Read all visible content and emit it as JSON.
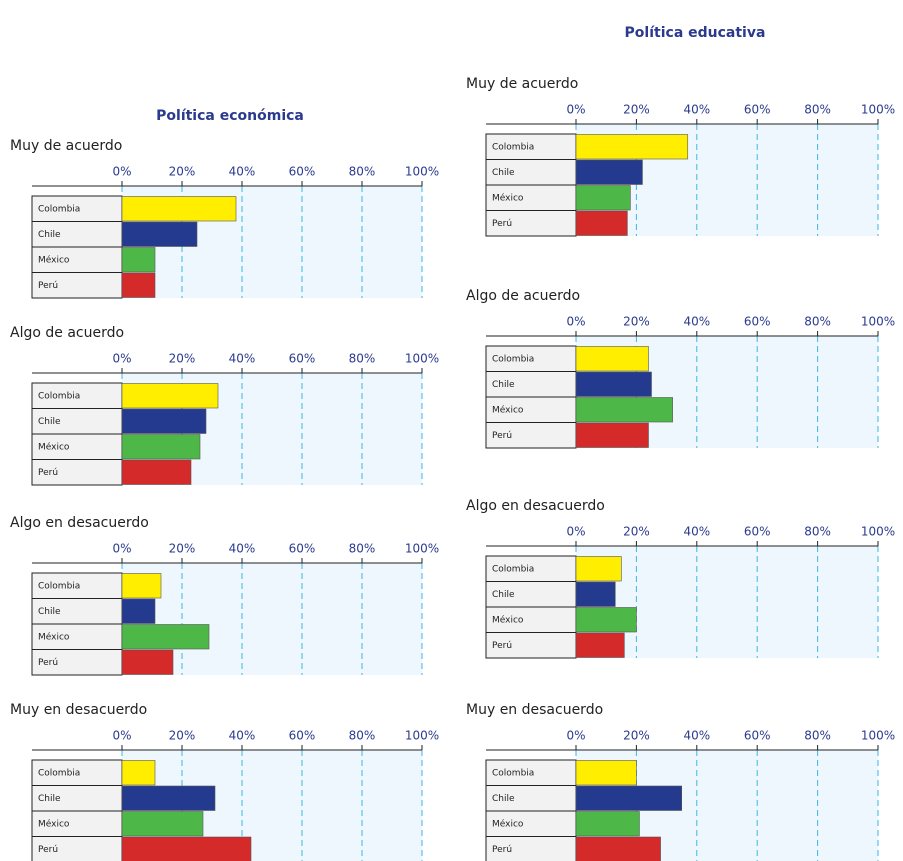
{
  "chart_data": [
    {
      "type": "bar",
      "title": "Política económica",
      "subtitle": "Muy de acuerdo",
      "categories": [
        "Colombia",
        "Chile",
        "México",
        "Perú"
      ],
      "values": [
        38,
        25,
        11,
        11
      ],
      "colors": [
        "#ffee00",
        "#233a8e",
        "#4db848",
        "#d42a2a"
      ],
      "xlim": [
        0,
        100
      ],
      "xticks": [
        {
          "value": 0,
          "label": "0%"
        },
        {
          "value": 20,
          "label": "20%"
        },
        {
          "value": 40,
          "label": "40%"
        },
        {
          "value": 60,
          "label": "60%"
        },
        {
          "value": 80,
          "label": "80%"
        },
        {
          "value": 100,
          "label": "100%"
        }
      ],
      "grid": true
    },
    {
      "type": "bar",
      "subtitle": "Algo de acuerdo",
      "categories": [
        "Colombia",
        "Chile",
        "México",
        "Perú"
      ],
      "values": [
        32,
        28,
        26,
        23
      ],
      "colors": [
        "#ffee00",
        "#233a8e",
        "#4db848",
        "#d42a2a"
      ],
      "xlim": [
        0,
        100
      ],
      "xticks": [
        {
          "value": 0,
          "label": "0%"
        },
        {
          "value": 20,
          "label": "20%"
        },
        {
          "value": 40,
          "label": "40%"
        },
        {
          "value": 60,
          "label": "60%"
        },
        {
          "value": 80,
          "label": "80%"
        },
        {
          "value": 100,
          "label": "100%"
        }
      ],
      "grid": true
    },
    {
      "type": "bar",
      "subtitle": "Algo en desacuerdo",
      "categories": [
        "Colombia",
        "Chile",
        "México",
        "Perú"
      ],
      "values": [
        13,
        11,
        29,
        17
      ],
      "colors": [
        "#ffee00",
        "#233a8e",
        "#4db848",
        "#d42a2a"
      ],
      "xlim": [
        0,
        100
      ],
      "xticks": [
        {
          "value": 0,
          "label": "0%"
        },
        {
          "value": 20,
          "label": "20%"
        },
        {
          "value": 40,
          "label": "40%"
        },
        {
          "value": 60,
          "label": "60%"
        },
        {
          "value": 80,
          "label": "80%"
        },
        {
          "value": 100,
          "label": "100%"
        }
      ],
      "grid": true
    },
    {
      "type": "bar",
      "subtitle": "Muy en desacuerdo",
      "categories": [
        "Colombia",
        "Chile",
        "México",
        "Perú"
      ],
      "values": [
        11,
        31,
        27,
        43
      ],
      "colors": [
        "#ffee00",
        "#233a8e",
        "#4db848",
        "#d42a2a"
      ],
      "xlim": [
        0,
        100
      ],
      "xticks": [
        {
          "value": 0,
          "label": "0%"
        },
        {
          "value": 20,
          "label": "20%"
        },
        {
          "value": 40,
          "label": "40%"
        },
        {
          "value": 60,
          "label": "60%"
        },
        {
          "value": 80,
          "label": "80%"
        },
        {
          "value": 100,
          "label": "100%"
        }
      ],
      "grid": true
    },
    {
      "type": "bar",
      "title": "Política educativa",
      "subtitle": "Muy de acuerdo",
      "categories": [
        "Colombia",
        "Chile",
        "México",
        "Perú"
      ],
      "values": [
        37,
        22,
        18,
        17
      ],
      "colors": [
        "#ffee00",
        "#233a8e",
        "#4db848",
        "#d42a2a"
      ],
      "xlim": [
        0,
        100
      ],
      "xticks": [
        {
          "value": 0,
          "label": "0%"
        },
        {
          "value": 20,
          "label": "20%"
        },
        {
          "value": 40,
          "label": "40%"
        },
        {
          "value": 60,
          "label": "60%"
        },
        {
          "value": 80,
          "label": "80%"
        },
        {
          "value": 100,
          "label": "100%"
        }
      ],
      "grid": true
    },
    {
      "type": "bar",
      "subtitle": "Algo de acuerdo",
      "categories": [
        "Colombia",
        "Chile",
        "México",
        "Perú"
      ],
      "values": [
        24,
        25,
        32,
        24
      ],
      "colors": [
        "#ffee00",
        "#233a8e",
        "#4db848",
        "#d42a2a"
      ],
      "xlim": [
        0,
        100
      ],
      "xticks": [
        {
          "value": 0,
          "label": "0%"
        },
        {
          "value": 20,
          "label": "20%"
        },
        {
          "value": 40,
          "label": "40%"
        },
        {
          "value": 60,
          "label": "60%"
        },
        {
          "value": 80,
          "label": "80%"
        },
        {
          "value": 100,
          "label": "100%"
        }
      ],
      "grid": true
    },
    {
      "type": "bar",
      "subtitle": "Algo en desacuerdo",
      "categories": [
        "Colombia",
        "Chile",
        "México",
        "Perú"
      ],
      "values": [
        15,
        13,
        20,
        16
      ],
      "colors": [
        "#ffee00",
        "#233a8e",
        "#4db848",
        "#d42a2a"
      ],
      "xlim": [
        0,
        100
      ],
      "xticks": [
        {
          "value": 0,
          "label": "0%"
        },
        {
          "value": 20,
          "label": "20%"
        },
        {
          "value": 40,
          "label": "40%"
        },
        {
          "value": 60,
          "label": "60%"
        },
        {
          "value": 80,
          "label": "80%"
        },
        {
          "value": 100,
          "label": "100%"
        }
      ],
      "grid": true
    },
    {
      "type": "bar",
      "subtitle": "Muy en desacuerdo",
      "categories": [
        "Colombia",
        "Chile",
        "México",
        "Perú"
      ],
      "values": [
        20,
        35,
        21,
        28
      ],
      "colors": [
        "#ffee00",
        "#233a8e",
        "#4db848",
        "#d42a2a"
      ],
      "xlim": [
        0,
        100
      ],
      "xticks": [
        {
          "value": 0,
          "label": "0%"
        },
        {
          "value": 20,
          "label": "20%"
        },
        {
          "value": 40,
          "label": "40%"
        },
        {
          "value": 60,
          "label": "60%"
        },
        {
          "value": 80,
          "label": "80%"
        },
        {
          "value": 100,
          "label": "100%"
        }
      ],
      "grid": true
    }
  ]
}
